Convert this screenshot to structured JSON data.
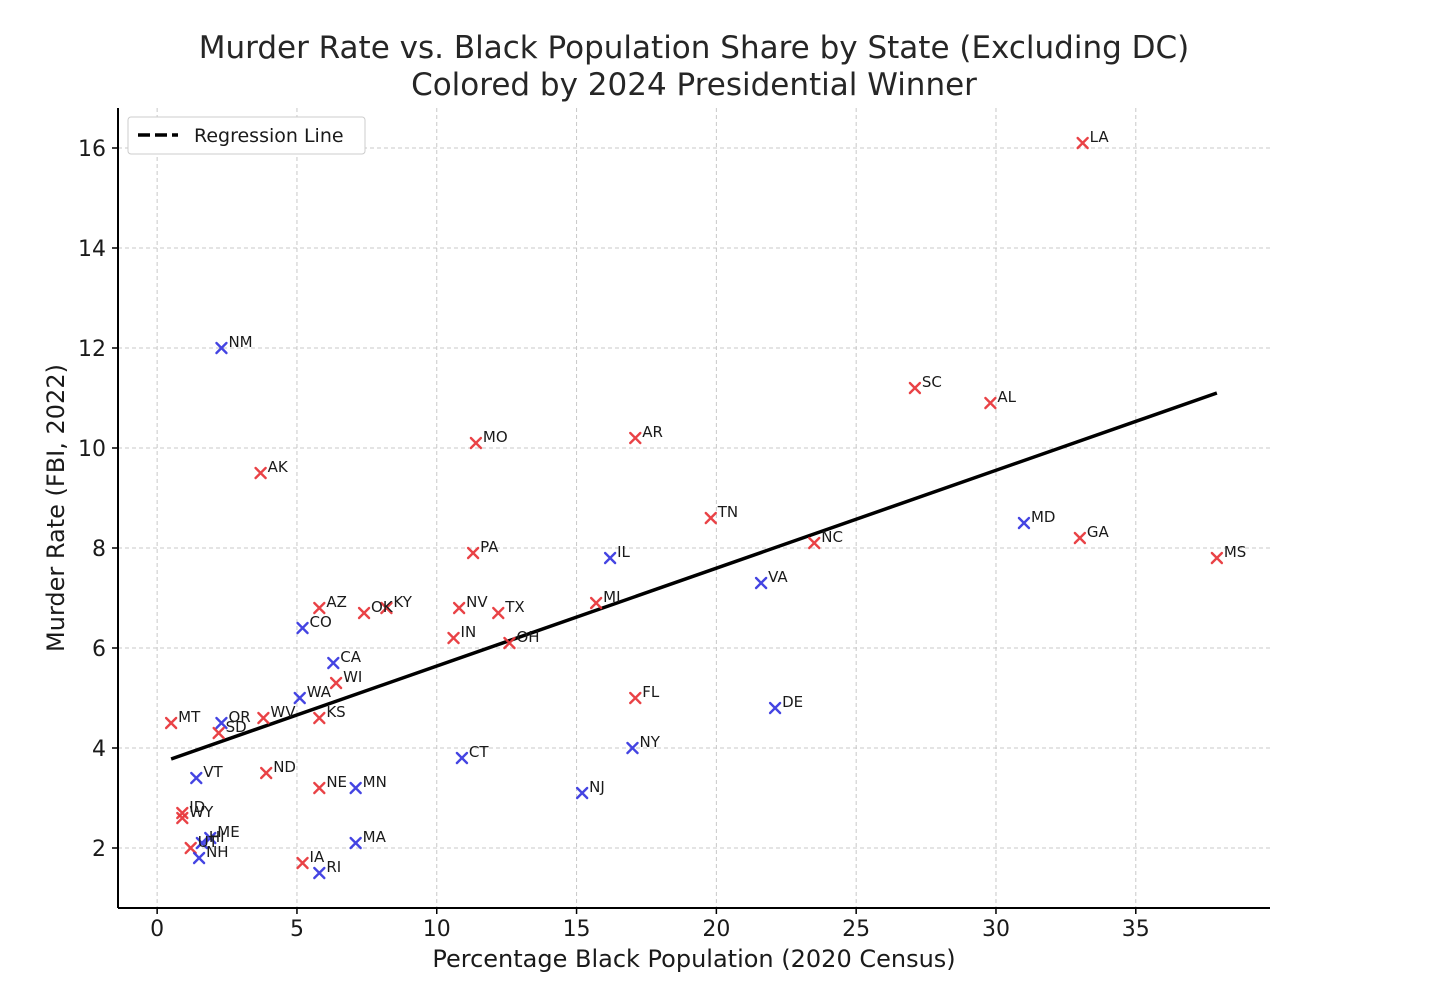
{
  "chart_data": {
    "type": "scatter",
    "title": [
      "Murder Rate vs. Black Population Share by State (Excluding DC)",
      "Colored by 2024 Presidential Winner"
    ],
    "xlabel": "Percentage Black Population (2020 Census)",
    "ylabel": "Murder Rate (FBI, 2022)",
    "xlim": [
      -1.4,
      39.8
    ],
    "ylim": [
      0.8,
      16.8
    ],
    "xticks": [
      0,
      5,
      10,
      15,
      20,
      25,
      30,
      35
    ],
    "yticks": [
      2,
      4,
      6,
      8,
      10,
      12,
      14,
      16
    ],
    "grid": true,
    "legend": {
      "position": "top-left",
      "entries": [
        "Regression Line"
      ]
    },
    "colors": {
      "R": "#e8383c",
      "D": "#3a3ae0",
      "regression": "#000000"
    },
    "regression": {
      "x": [
        0.5,
        37.9
      ],
      "y": [
        3.78,
        11.1
      ]
    },
    "points": [
      {
        "label": "LA",
        "x": 33.1,
        "y": 16.1,
        "party": "R"
      },
      {
        "label": "NM",
        "x": 2.3,
        "y": 12.0,
        "party": "D"
      },
      {
        "label": "SC",
        "x": 27.1,
        "y": 11.2,
        "party": "R"
      },
      {
        "label": "AL",
        "x": 29.8,
        "y": 10.9,
        "party": "R"
      },
      {
        "label": "AR",
        "x": 17.1,
        "y": 10.2,
        "party": "R"
      },
      {
        "label": "MO",
        "x": 11.4,
        "y": 10.1,
        "party": "R"
      },
      {
        "label": "AK",
        "x": 3.7,
        "y": 9.5,
        "party": "R"
      },
      {
        "label": "TN",
        "x": 19.8,
        "y": 8.6,
        "party": "R"
      },
      {
        "label": "MD",
        "x": 31.0,
        "y": 8.5,
        "party": "D"
      },
      {
        "label": "GA",
        "x": 33.0,
        "y": 8.2,
        "party": "R"
      },
      {
        "label": "NC",
        "x": 23.5,
        "y": 8.1,
        "party": "R"
      },
      {
        "label": "PA",
        "x": 11.3,
        "y": 7.9,
        "party": "R"
      },
      {
        "label": "IL",
        "x": 16.2,
        "y": 7.8,
        "party": "D"
      },
      {
        "label": "MS",
        "x": 37.9,
        "y": 7.8,
        "party": "R"
      },
      {
        "label": "VA",
        "x": 21.6,
        "y": 7.3,
        "party": "D"
      },
      {
        "label": "MI",
        "x": 15.7,
        "y": 6.9,
        "party": "R"
      },
      {
        "label": "AZ",
        "x": 5.8,
        "y": 6.8,
        "party": "R"
      },
      {
        "label": "NV",
        "x": 10.8,
        "y": 6.8,
        "party": "R"
      },
      {
        "label": "KY",
        "x": 8.2,
        "y": 6.8,
        "party": "R"
      },
      {
        "label": "OK",
        "x": 7.4,
        "y": 6.7,
        "party": "R"
      },
      {
        "label": "TX",
        "x": 12.2,
        "y": 6.7,
        "party": "R"
      },
      {
        "label": "CO",
        "x": 5.2,
        "y": 6.4,
        "party": "D"
      },
      {
        "label": "IN",
        "x": 10.6,
        "y": 6.2,
        "party": "R"
      },
      {
        "label": "OH",
        "x": 12.6,
        "y": 6.1,
        "party": "R"
      },
      {
        "label": "CA",
        "x": 6.3,
        "y": 5.7,
        "party": "D"
      },
      {
        "label": "WI",
        "x": 6.4,
        "y": 5.3,
        "party": "R"
      },
      {
        "label": "FL",
        "x": 17.1,
        "y": 5.0,
        "party": "R"
      },
      {
        "label": "WA",
        "x": 5.1,
        "y": 5.0,
        "party": "D"
      },
      {
        "label": "DE",
        "x": 22.1,
        "y": 4.8,
        "party": "D"
      },
      {
        "label": "WV",
        "x": 3.8,
        "y": 4.6,
        "party": "R"
      },
      {
        "label": "KS",
        "x": 5.8,
        "y": 4.6,
        "party": "R"
      },
      {
        "label": "MT",
        "x": 0.5,
        "y": 4.5,
        "party": "R"
      },
      {
        "label": "OR",
        "x": 2.3,
        "y": 4.5,
        "party": "D"
      },
      {
        "label": "SD",
        "x": 2.2,
        "y": 4.3,
        "party": "R"
      },
      {
        "label": "NY",
        "x": 17.0,
        "y": 4.0,
        "party": "D"
      },
      {
        "label": "CT",
        "x": 10.9,
        "y": 3.8,
        "party": "D"
      },
      {
        "label": "ND",
        "x": 3.9,
        "y": 3.5,
        "party": "R"
      },
      {
        "label": "VT",
        "x": 1.4,
        "y": 3.4,
        "party": "D"
      },
      {
        "label": "NE",
        "x": 5.8,
        "y": 3.2,
        "party": "R"
      },
      {
        "label": "MN",
        "x": 7.1,
        "y": 3.2,
        "party": "D"
      },
      {
        "label": "NJ",
        "x": 15.2,
        "y": 3.1,
        "party": "D"
      },
      {
        "label": "ID",
        "x": 0.9,
        "y": 2.7,
        "party": "R"
      },
      {
        "label": "WY",
        "x": 0.9,
        "y": 2.6,
        "party": "R"
      },
      {
        "label": "ME",
        "x": 1.9,
        "y": 2.2,
        "party": "D"
      },
      {
        "label": "HI",
        "x": 1.6,
        "y": 2.1,
        "party": "D"
      },
      {
        "label": "MA",
        "x": 7.1,
        "y": 2.1,
        "party": "D"
      },
      {
        "label": "UT",
        "x": 1.2,
        "y": 2.0,
        "party": "R"
      },
      {
        "label": "NH",
        "x": 1.5,
        "y": 1.8,
        "party": "D"
      },
      {
        "label": "IA",
        "x": 5.2,
        "y": 1.7,
        "party": "R"
      },
      {
        "label": "RI",
        "x": 5.8,
        "y": 1.5,
        "party": "D"
      }
    ]
  }
}
